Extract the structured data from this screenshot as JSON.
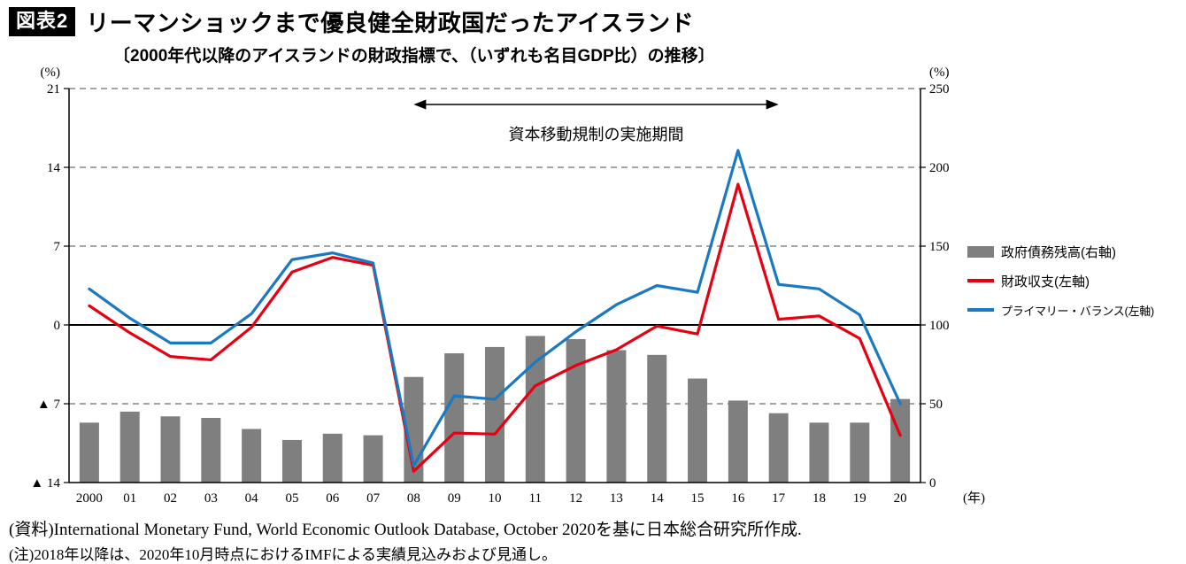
{
  "header": {
    "badge": "図表2",
    "title": "リーマンショックまで優良健全財政国だったアイスランド",
    "subtitle": "〔2000年代以降のアイスランドの財政指標で、（いずれも名目GDP比）の推移〕"
  },
  "chart_data": {
    "type": "combo",
    "title": "リーマンショックまで優良健全財政国だったアイスランド",
    "subtitle": "〔2000年代以降のアイスランドの財政指標で、（いずれも名目GDP比）の推移〕",
    "categories": [
      "2000",
      "01",
      "02",
      "03",
      "04",
      "05",
      "06",
      "07",
      "08",
      "09",
      "10",
      "11",
      "12",
      "13",
      "14",
      "15",
      "16",
      "17",
      "18",
      "19",
      "20"
    ],
    "series": [
      {
        "name": "政府債務残高(右軸)",
        "type": "bar",
        "axis": "right",
        "color": "#7f7f7f",
        "values": [
          38,
          45,
          42,
          41,
          34,
          27,
          31,
          30,
          67,
          82,
          86,
          93,
          91,
          84,
          81,
          66,
          52,
          44,
          38,
          38,
          53
        ]
      },
      {
        "name": "財政収支(左軸)",
        "type": "line",
        "axis": "left",
        "color": "#e60012",
        "values": [
          1.7,
          -0.7,
          -2.8,
          -3.1,
          -0.2,
          4.7,
          6.0,
          5.3,
          -13.0,
          -9.6,
          -9.7,
          -5.4,
          -3.6,
          -2.2,
          -0.1,
          -0.8,
          12.5,
          0.5,
          0.8,
          -1.2,
          -9.8
        ]
      },
      {
        "name": "プライマリー・バランス(左軸)",
        "type": "line",
        "axis": "left",
        "color": "#1b79c2",
        "values": [
          3.2,
          0.6,
          -1.6,
          -1.6,
          1.0,
          5.8,
          6.4,
          5.5,
          -12.5,
          -6.3,
          -6.6,
          -3.3,
          -0.6,
          1.8,
          3.5,
          2.9,
          15.5,
          3.6,
          3.2,
          0.9,
          -7.0
        ]
      }
    ],
    "left_axis": {
      "unit": "(%)",
      "min": -14,
      "max": 21,
      "ticks": [
        21,
        14,
        7,
        0,
        -7,
        -14
      ],
      "tick_labels": [
        "21",
        "14",
        "7",
        "0",
        "▲ 7",
        "▲ 14"
      ]
    },
    "right_axis": {
      "unit": "(%)",
      "min": 0,
      "max": 250,
      "ticks": [
        250,
        200,
        150,
        100,
        50,
        0
      ]
    },
    "x_axis": {
      "unit": "(年)"
    },
    "annotation": {
      "text": "資本移動規制の実施期間",
      "from_category": "08",
      "to_category": "17"
    },
    "grid": "dashed horizontal",
    "legend_position": "right"
  },
  "footer": {
    "source": "(資料)International Monetary Fund, World Economic Outlook Database, October 2020を基に日本総合研究所作成.",
    "note": "(注)2018年以降は、2020年10月時点におけるIMFによる実績見込みおよび見通し。"
  }
}
